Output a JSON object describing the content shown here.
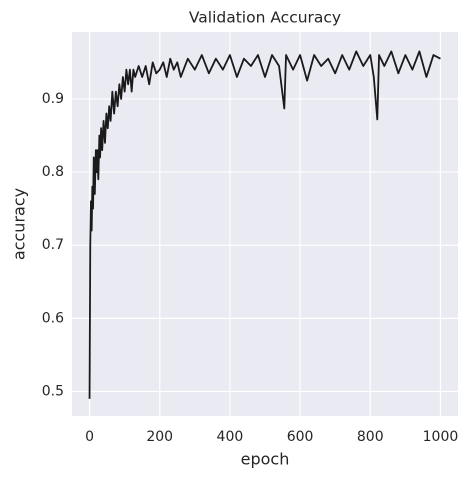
{
  "chart_data": {
    "type": "line",
    "title": "Validation Accuracy",
    "x_label": "epoch",
    "y_label": "accuracy",
    "x": [
      0,
      2,
      4,
      6,
      8,
      10,
      12,
      15,
      18,
      20,
      22,
      25,
      28,
      30,
      33,
      36,
      40,
      44,
      48,
      52,
      56,
      60,
      65,
      70,
      75,
      80,
      85,
      90,
      95,
      100,
      105,
      110,
      115,
      120,
      125,
      130,
      140,
      150,
      160,
      170,
      180,
      190,
      200,
      210,
      220,
      230,
      240,
      250,
      260,
      280,
      300,
      320,
      340,
      360,
      380,
      400,
      420,
      440,
      460,
      480,
      500,
      520,
      540,
      555,
      560,
      580,
      600,
      620,
      640,
      660,
      680,
      700,
      720,
      740,
      760,
      780,
      800,
      810,
      820,
      825,
      840,
      860,
      880,
      900,
      920,
      940,
      960,
      980,
      1000
    ],
    "series": [
      {
        "color": "#1a1a1a",
        "values": [
          0.49,
          0.7,
          0.76,
          0.72,
          0.78,
          0.75,
          0.82,
          0.77,
          0.83,
          0.8,
          0.83,
          0.79,
          0.85,
          0.82,
          0.86,
          0.83,
          0.87,
          0.84,
          0.88,
          0.86,
          0.89,
          0.87,
          0.91,
          0.88,
          0.91,
          0.89,
          0.92,
          0.9,
          0.93,
          0.91,
          0.94,
          0.92,
          0.94,
          0.91,
          0.94,
          0.93,
          0.945,
          0.93,
          0.945,
          0.92,
          0.95,
          0.935,
          0.94,
          0.95,
          0.93,
          0.955,
          0.94,
          0.95,
          0.93,
          0.955,
          0.94,
          0.96,
          0.935,
          0.955,
          0.94,
          0.96,
          0.93,
          0.955,
          0.945,
          0.96,
          0.93,
          0.96,
          0.945,
          0.887,
          0.96,
          0.94,
          0.96,
          0.925,
          0.96,
          0.945,
          0.955,
          0.935,
          0.96,
          0.94,
          0.965,
          0.945,
          0.96,
          0.93,
          0.872,
          0.96,
          0.945,
          0.965,
          0.935,
          0.96,
          0.94,
          0.965,
          0.93,
          0.96,
          0.955
        ]
      }
    ],
    "xlim": [
      -50,
      1050
    ],
    "ylim": [
      0.4665,
      0.9915
    ],
    "xticks": [
      0,
      200,
      400,
      600,
      800,
      1000
    ],
    "yticks": [
      0.5,
      0.6,
      0.7,
      0.8,
      0.9
    ],
    "grid": true,
    "background": "#eaeaf2"
  }
}
